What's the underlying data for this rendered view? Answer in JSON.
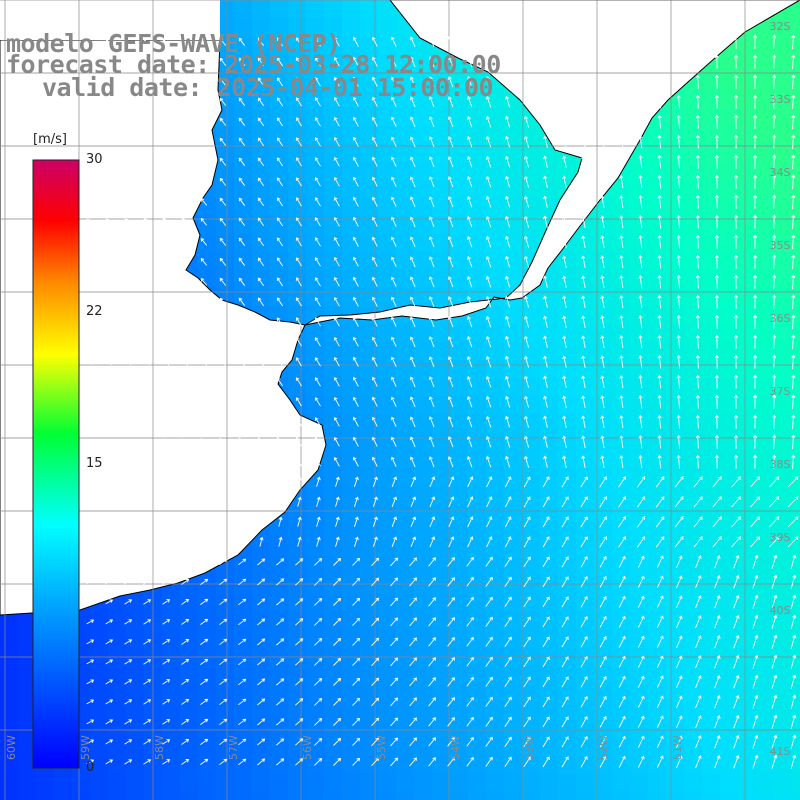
{
  "title": {
    "model": "modelo GEFS-WAVE (NCEP)",
    "forecast": "forecast date: 2025-03-28 12:00:00",
    "valid": "valid date: 2025-04-01 15:00:00"
  },
  "colorbar": {
    "units": "[m/s]",
    "ticks": [
      "30",
      "22",
      "15",
      "0"
    ],
    "tick_values": [
      30,
      22,
      15,
      0
    ],
    "range": [
      0,
      30
    ],
    "colors": [
      "#0000ff",
      "#0088ff",
      "#00ddff",
      "#00ff66",
      "#ffee00",
      "#ff8800",
      "#ff1100",
      "#cc0066"
    ]
  },
  "grid": {
    "lat_labels": [
      "32S",
      "33S",
      "34S",
      "35S",
      "36S",
      "37S",
      "38S",
      "39S",
      "40S",
      "41S"
    ],
    "lon_labels": [
      "60W",
      "59W",
      "58W",
      "57W",
      "56W",
      "55W",
      "54W",
      "53W",
      "52W",
      "51W"
    ]
  },
  "field": {
    "name": "wind speed",
    "land_color": "#ffffff",
    "coast_color": "#000000",
    "grid_color": "#888888"
  }
}
